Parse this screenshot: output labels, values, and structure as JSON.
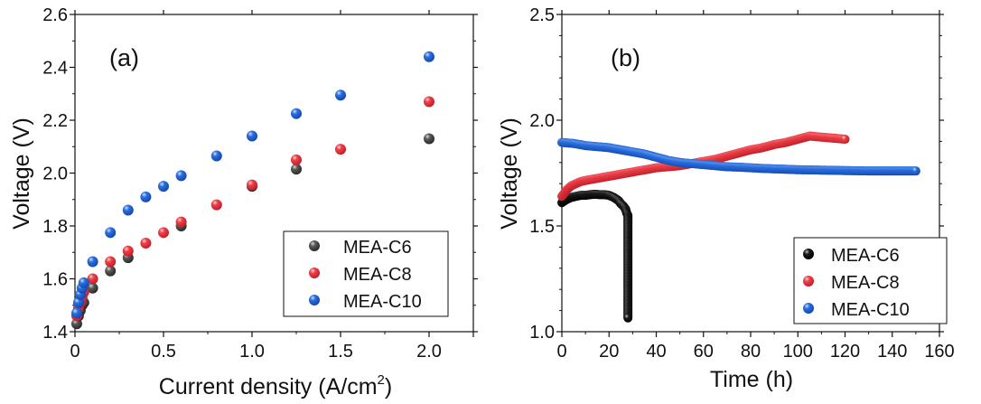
{
  "chart_data": [
    {
      "type": "scatter",
      "panel_label": "(a)",
      "title": "",
      "xlabel": "Current density (A/cm",
      "xlabel_sup": "2",
      "xlabel_end": ")",
      "ylabel": "Voltage (V)",
      "xlim": [
        0,
        2.25
      ],
      "ylim": [
        1.4,
        2.6
      ],
      "xticks": [
        0,
        0.5,
        1.0,
        1.5,
        2.0
      ],
      "xtick_labels": [
        "0",
        "0.5",
        "1.0",
        "1.5",
        "2.0"
      ],
      "yticks": [
        1.4,
        1.6,
        1.8,
        2.0,
        2.2,
        2.4,
        2.6
      ],
      "ytick_labels": [
        "1.4",
        "1.6",
        "1.8",
        "2.0",
        "2.2",
        "2.4",
        "2.6"
      ],
      "grid": false,
      "legend_position": "bottom-right",
      "series": [
        {
          "name": "MEA-C6",
          "color": "#4a4a4a",
          "x": [
            0.01,
            0.02,
            0.03,
            0.04,
            0.05,
            0.1,
            0.2,
            0.3,
            0.6,
            1.0,
            1.25,
            2.0
          ],
          "y": [
            1.43,
            1.46,
            1.48,
            1.5,
            1.51,
            1.565,
            1.63,
            1.68,
            1.8,
            1.95,
            2.015,
            2.13
          ]
        },
        {
          "name": "MEA-C8",
          "color": "#e8343c",
          "x": [
            0.01,
            0.02,
            0.03,
            0.04,
            0.05,
            0.1,
            0.2,
            0.3,
            0.4,
            0.5,
            0.6,
            0.8,
            1.0,
            1.25,
            1.5,
            2.0
          ],
          "y": [
            1.46,
            1.49,
            1.51,
            1.53,
            1.55,
            1.6,
            1.665,
            1.705,
            1.735,
            1.775,
            1.815,
            1.88,
            1.955,
            2.05,
            2.09,
            2.27
          ]
        },
        {
          "name": "MEA-C10",
          "color": "#1f64d6",
          "x": [
            0.01,
            0.02,
            0.03,
            0.04,
            0.05,
            0.1,
            0.2,
            0.3,
            0.4,
            0.5,
            0.6,
            0.8,
            1.0,
            1.25,
            1.5,
            2.0
          ],
          "y": [
            1.47,
            1.51,
            1.54,
            1.565,
            1.585,
            1.665,
            1.775,
            1.86,
            1.91,
            1.95,
            1.99,
            2.065,
            2.14,
            2.225,
            2.295,
            2.44
          ]
        }
      ]
    },
    {
      "type": "scatter",
      "panel_label": "(b)",
      "title": "",
      "xlabel": "Time (h)",
      "ylabel": "Voltage (V)",
      "xlim": [
        0,
        160
      ],
      "ylim": [
        1.0,
        2.5
      ],
      "xticks": [
        0,
        20,
        40,
        60,
        80,
        100,
        120,
        140,
        160
      ],
      "xtick_labels": [
        "0",
        "20",
        "40",
        "60",
        "80",
        "100",
        "120",
        "140",
        "160"
      ],
      "yticks": [
        1.0,
        1.5,
        2.0,
        2.5
      ],
      "ytick_labels": [
        "1.0",
        "1.5",
        "2.0",
        "2.5"
      ],
      "grid": false,
      "legend_position": "bottom-right",
      "series": [
        {
          "name": "MEA-C6",
          "color": "#111111",
          "x": [
            0,
            2,
            4,
            6,
            8,
            10,
            12,
            14,
            16,
            18,
            20,
            22,
            24,
            25,
            26,
            27,
            27.5,
            28,
            28,
            28,
            28,
            28,
            28,
            28,
            28,
            28,
            28,
            28,
            28
          ],
          "y": [
            1.61,
            1.625,
            1.635,
            1.64,
            1.645,
            1.645,
            1.648,
            1.65,
            1.648,
            1.648,
            1.645,
            1.635,
            1.62,
            1.605,
            1.595,
            1.58,
            1.56,
            1.55,
            1.53,
            1.51,
            1.41,
            1.35,
            1.3,
            1.22,
            1.19,
            1.14,
            1.11,
            1.08,
            1.065
          ]
        },
        {
          "name": "MEA-C8",
          "color": "#e8343c",
          "x": [
            0,
            2,
            4,
            6,
            8,
            10,
            15,
            20,
            25,
            30,
            35,
            40,
            45,
            50,
            55,
            60,
            65,
            70,
            75,
            80,
            85,
            90,
            95,
            100,
            105,
            110,
            115,
            120
          ],
          "y": [
            1.64,
            1.67,
            1.69,
            1.7,
            1.71,
            1.715,
            1.725,
            1.735,
            1.745,
            1.755,
            1.765,
            1.775,
            1.78,
            1.785,
            1.795,
            1.805,
            1.815,
            1.83,
            1.845,
            1.86,
            1.87,
            1.885,
            1.895,
            1.91,
            1.925,
            1.92,
            1.915,
            1.91
          ]
        },
        {
          "name": "MEA-C10",
          "color": "#1f64d6",
          "x": [
            0,
            5,
            10,
            15,
            20,
            25,
            30,
            35,
            40,
            45,
            50,
            55,
            60,
            65,
            70,
            75,
            80,
            85,
            90,
            95,
            100,
            105,
            110,
            115,
            120,
            125,
            130,
            135,
            140,
            145,
            150
          ],
          "y": [
            1.895,
            1.89,
            1.88,
            1.875,
            1.87,
            1.86,
            1.85,
            1.84,
            1.825,
            1.81,
            1.8,
            1.795,
            1.79,
            1.785,
            1.78,
            1.778,
            1.775,
            1.772,
            1.77,
            1.768,
            1.766,
            1.765,
            1.764,
            1.763,
            1.762,
            1.761,
            1.76,
            1.76,
            1.76,
            1.76,
            1.76
          ]
        }
      ]
    }
  ]
}
